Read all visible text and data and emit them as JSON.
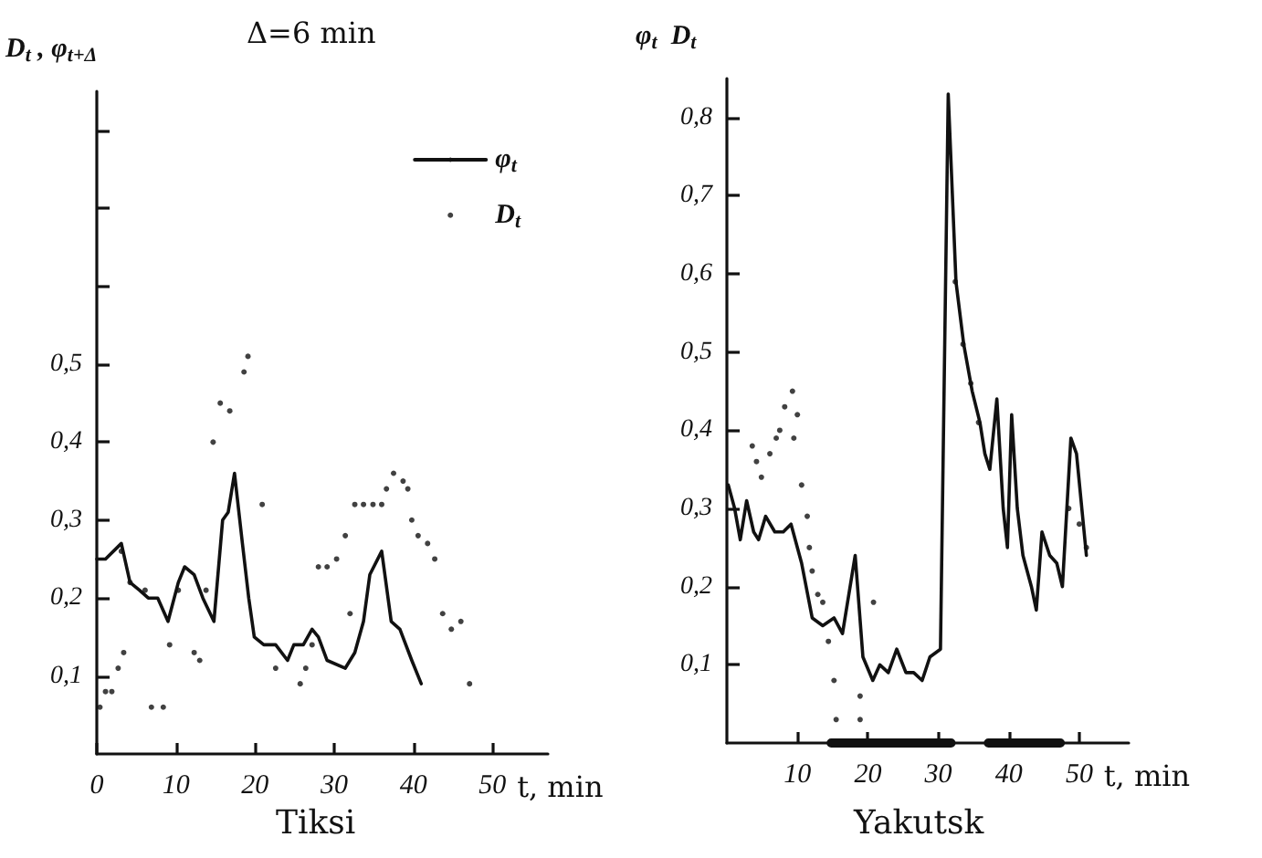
{
  "chart_data": [
    {
      "type": "line",
      "title": "Tiksi",
      "xlabel": "t, min",
      "ylabel": "D$_{t}$ , φ$_{t+Δ}$",
      "annotations": [
        "Δ=6 min"
      ],
      "legend": "top right",
      "grid": false,
      "xlim": [
        0,
        57
      ],
      "xticks": [
        0,
        10,
        20,
        30,
        40,
        50
      ],
      "ylim": [
        0,
        0.85
      ],
      "yticks": [
        {
          "value": 0.1,
          "label": "0,1"
        },
        {
          "value": 0.2,
          "label": "0,2"
        },
        {
          "value": 0.3,
          "label": "0,3"
        },
        {
          "value": 0.4,
          "label": "0,4"
        },
        {
          "value": 0.5,
          "label": "0,5"
        },
        {
          "value": 0.6,
          "label": null
        },
        {
          "value": 0.7,
          "label": null
        },
        {
          "value": 0.8,
          "label": null
        }
      ],
      "series": [
        {
          "name": "φ$_{t}$",
          "type": "line",
          "marker": "none",
          "line_style": "solid",
          "color": "#111111",
          "x": [
            0,
            1.1,
            3.1,
            4.2,
            5.4,
            6.5,
            7.7,
            9,
            10.3,
            11.1,
            12.3,
            13.4,
            14.8,
            15.9,
            16.6,
            17.4,
            18.4,
            19.2,
            19.9,
            21.1,
            22.6,
            24.1,
            24.9,
            26.1,
            27.2,
            28,
            29.1,
            31.4,
            32.6,
            33.7,
            34.5,
            36,
            37.2,
            38.3,
            39.8,
            41
          ],
          "values": [
            0.25,
            0.25,
            0.27,
            0.22,
            0.21,
            0.2,
            0.2,
            0.17,
            0.22,
            0.24,
            0.23,
            0.2,
            0.17,
            0.3,
            0.31,
            0.36,
            0.27,
            0.2,
            0.15,
            0.14,
            0.14,
            0.12,
            0.14,
            0.14,
            0.16,
            0.15,
            0.12,
            0.11,
            0.13,
            0.17,
            0.23,
            0.26,
            0.17,
            0.16,
            0.12,
            0.09
          ]
        },
        {
          "name": "D$_{t}$",
          "type": "scatter",
          "marker": "circle",
          "color": "#111111",
          "x": [
            0.4,
            1.1,
            1.9,
            2.7,
            3.4,
            3.1,
            4.2,
            6.1,
            6.9,
            8.4,
            9.2,
            10.3,
            12.3,
            13,
            13.8,
            14.7,
            15.6,
            16.8,
            18.6,
            19.1,
            20.9,
            22.6,
            25.7,
            26.4,
            27.2,
            28,
            29.1,
            30.3,
            31.4,
            32,
            32.6,
            33.7,
            34.9,
            36,
            36.6,
            37.5,
            38.7,
            39.3,
            39.8,
            40.6,
            41.8,
            42.7,
            43.7,
            44.8,
            46,
            47.1
          ],
          "values": [
            0.06,
            0.08,
            0.08,
            0.11,
            0.13,
            0.26,
            0.22,
            0.21,
            0.06,
            0.06,
            0.14,
            0.21,
            0.13,
            0.12,
            0.21,
            0.4,
            0.45,
            0.44,
            0.49,
            0.51,
            0.32,
            0.11,
            0.09,
            0.11,
            0.14,
            0.24,
            0.24,
            0.25,
            0.28,
            0.18,
            0.32,
            0.32,
            0.32,
            0.32,
            0.34,
            0.36,
            0.35,
            0.34,
            0.3,
            0.28,
            0.27,
            0.25,
            0.18,
            0.16,
            0.17,
            0.09
          ]
        }
      ]
    },
    {
      "type": "line",
      "title": "Yakutsk",
      "xlabel": "t, min",
      "ylabel": "φ$_{t}$  D$_{t}$",
      "grid": false,
      "xlim": [
        0,
        57
      ],
      "xticks": [
        10,
        20,
        30,
        40,
        50
      ],
      "ylim": [
        0,
        0.85
      ],
      "yticks": [
        {
          "value": 0.1,
          "label": "0,1"
        },
        {
          "value": 0.2,
          "label": "0,2"
        },
        {
          "value": 0.3,
          "label": "0,3"
        },
        {
          "value": 0.4,
          "label": "0,4"
        },
        {
          "value": 0.5,
          "label": "0,5"
        },
        {
          "value": 0.6,
          "label": "0,6"
        },
        {
          "value": 0.7,
          "label": "0,7"
        },
        {
          "value": 0.8,
          "label": "0,8"
        }
      ],
      "series": [
        {
          "type": "line",
          "marker": "none",
          "line_style": "solid",
          "color": "#111111",
          "x": [
            14.8,
            31.8,
            34,
            37.1,
            47.3
          ],
          "values": [
            0,
            0,
            null,
            0,
            0
          ]
        },
        {
          "type": "line",
          "marker": "none",
          "line_style": "solid",
          "color": "#111111",
          "x": [
            0.2,
            1.1,
            1.9,
            2.8,
            3.8,
            4.5,
            5.5,
            6.8,
            8,
            9.1,
            10.6,
            12.1,
            13.6,
            15.2,
            16.4,
            18.2,
            19.3,
            20.7,
            21.7,
            22.9,
            24.1,
            25.4,
            26.5,
            27.7,
            28.8,
            30.3,
            31.4,
            32.5,
            33.6,
            34.8,
            35.9,
            36.6,
            37.3,
            38.3,
            39.2,
            39.8,
            40.4,
            41.2,
            42,
            43.2,
            43.9,
            44.7,
            45.8,
            46.8,
            47.6,
            48.8,
            49.6,
            51
          ],
          "values": [
            0.33,
            0.3,
            0.26,
            0.31,
            0.27,
            0.26,
            0.29,
            0.27,
            0.27,
            0.28,
            0.23,
            0.16,
            0.15,
            0.16,
            0.14,
            0.24,
            0.11,
            0.08,
            0.1,
            0.09,
            0.12,
            0.09,
            0.09,
            0.08,
            0.11,
            0.12,
            0.83,
            0.59,
            0.51,
            0.45,
            0.41,
            0.37,
            0.35,
            0.44,
            0.3,
            0.25,
            0.42,
            0.3,
            0.24,
            0.2,
            0.17,
            0.27,
            0.24,
            0.23,
            0.2,
            0.39,
            0.37,
            0.24
          ]
        },
        {
          "type": "scatter",
          "marker": "circle",
          "color": "#111111",
          "x": [
            3.6,
            4.2,
            4.9,
            6.1,
            7,
            7.5,
            8.2,
            9.3,
            9.5,
            10,
            10.6,
            11.4,
            11.7,
            12.1,
            12.9,
            13.6,
            14.4,
            15.2,
            15.5,
            18.9,
            18.9,
            20.8,
            32.4,
            33.5,
            34.6,
            35.7,
            48.5,
            50,
            51
          ],
          "values": [
            0.38,
            0.36,
            0.34,
            0.37,
            0.39,
            0.4,
            0.43,
            0.45,
            0.39,
            0.42,
            0.33,
            0.29,
            0.25,
            0.22,
            0.19,
            0.18,
            0.13,
            0.08,
            0.03,
            0.06,
            0.03,
            0.18,
            0.59,
            0.51,
            0.46,
            0.41,
            0.3,
            0.28,
            0.25
          ]
        }
      ]
    }
  ]
}
